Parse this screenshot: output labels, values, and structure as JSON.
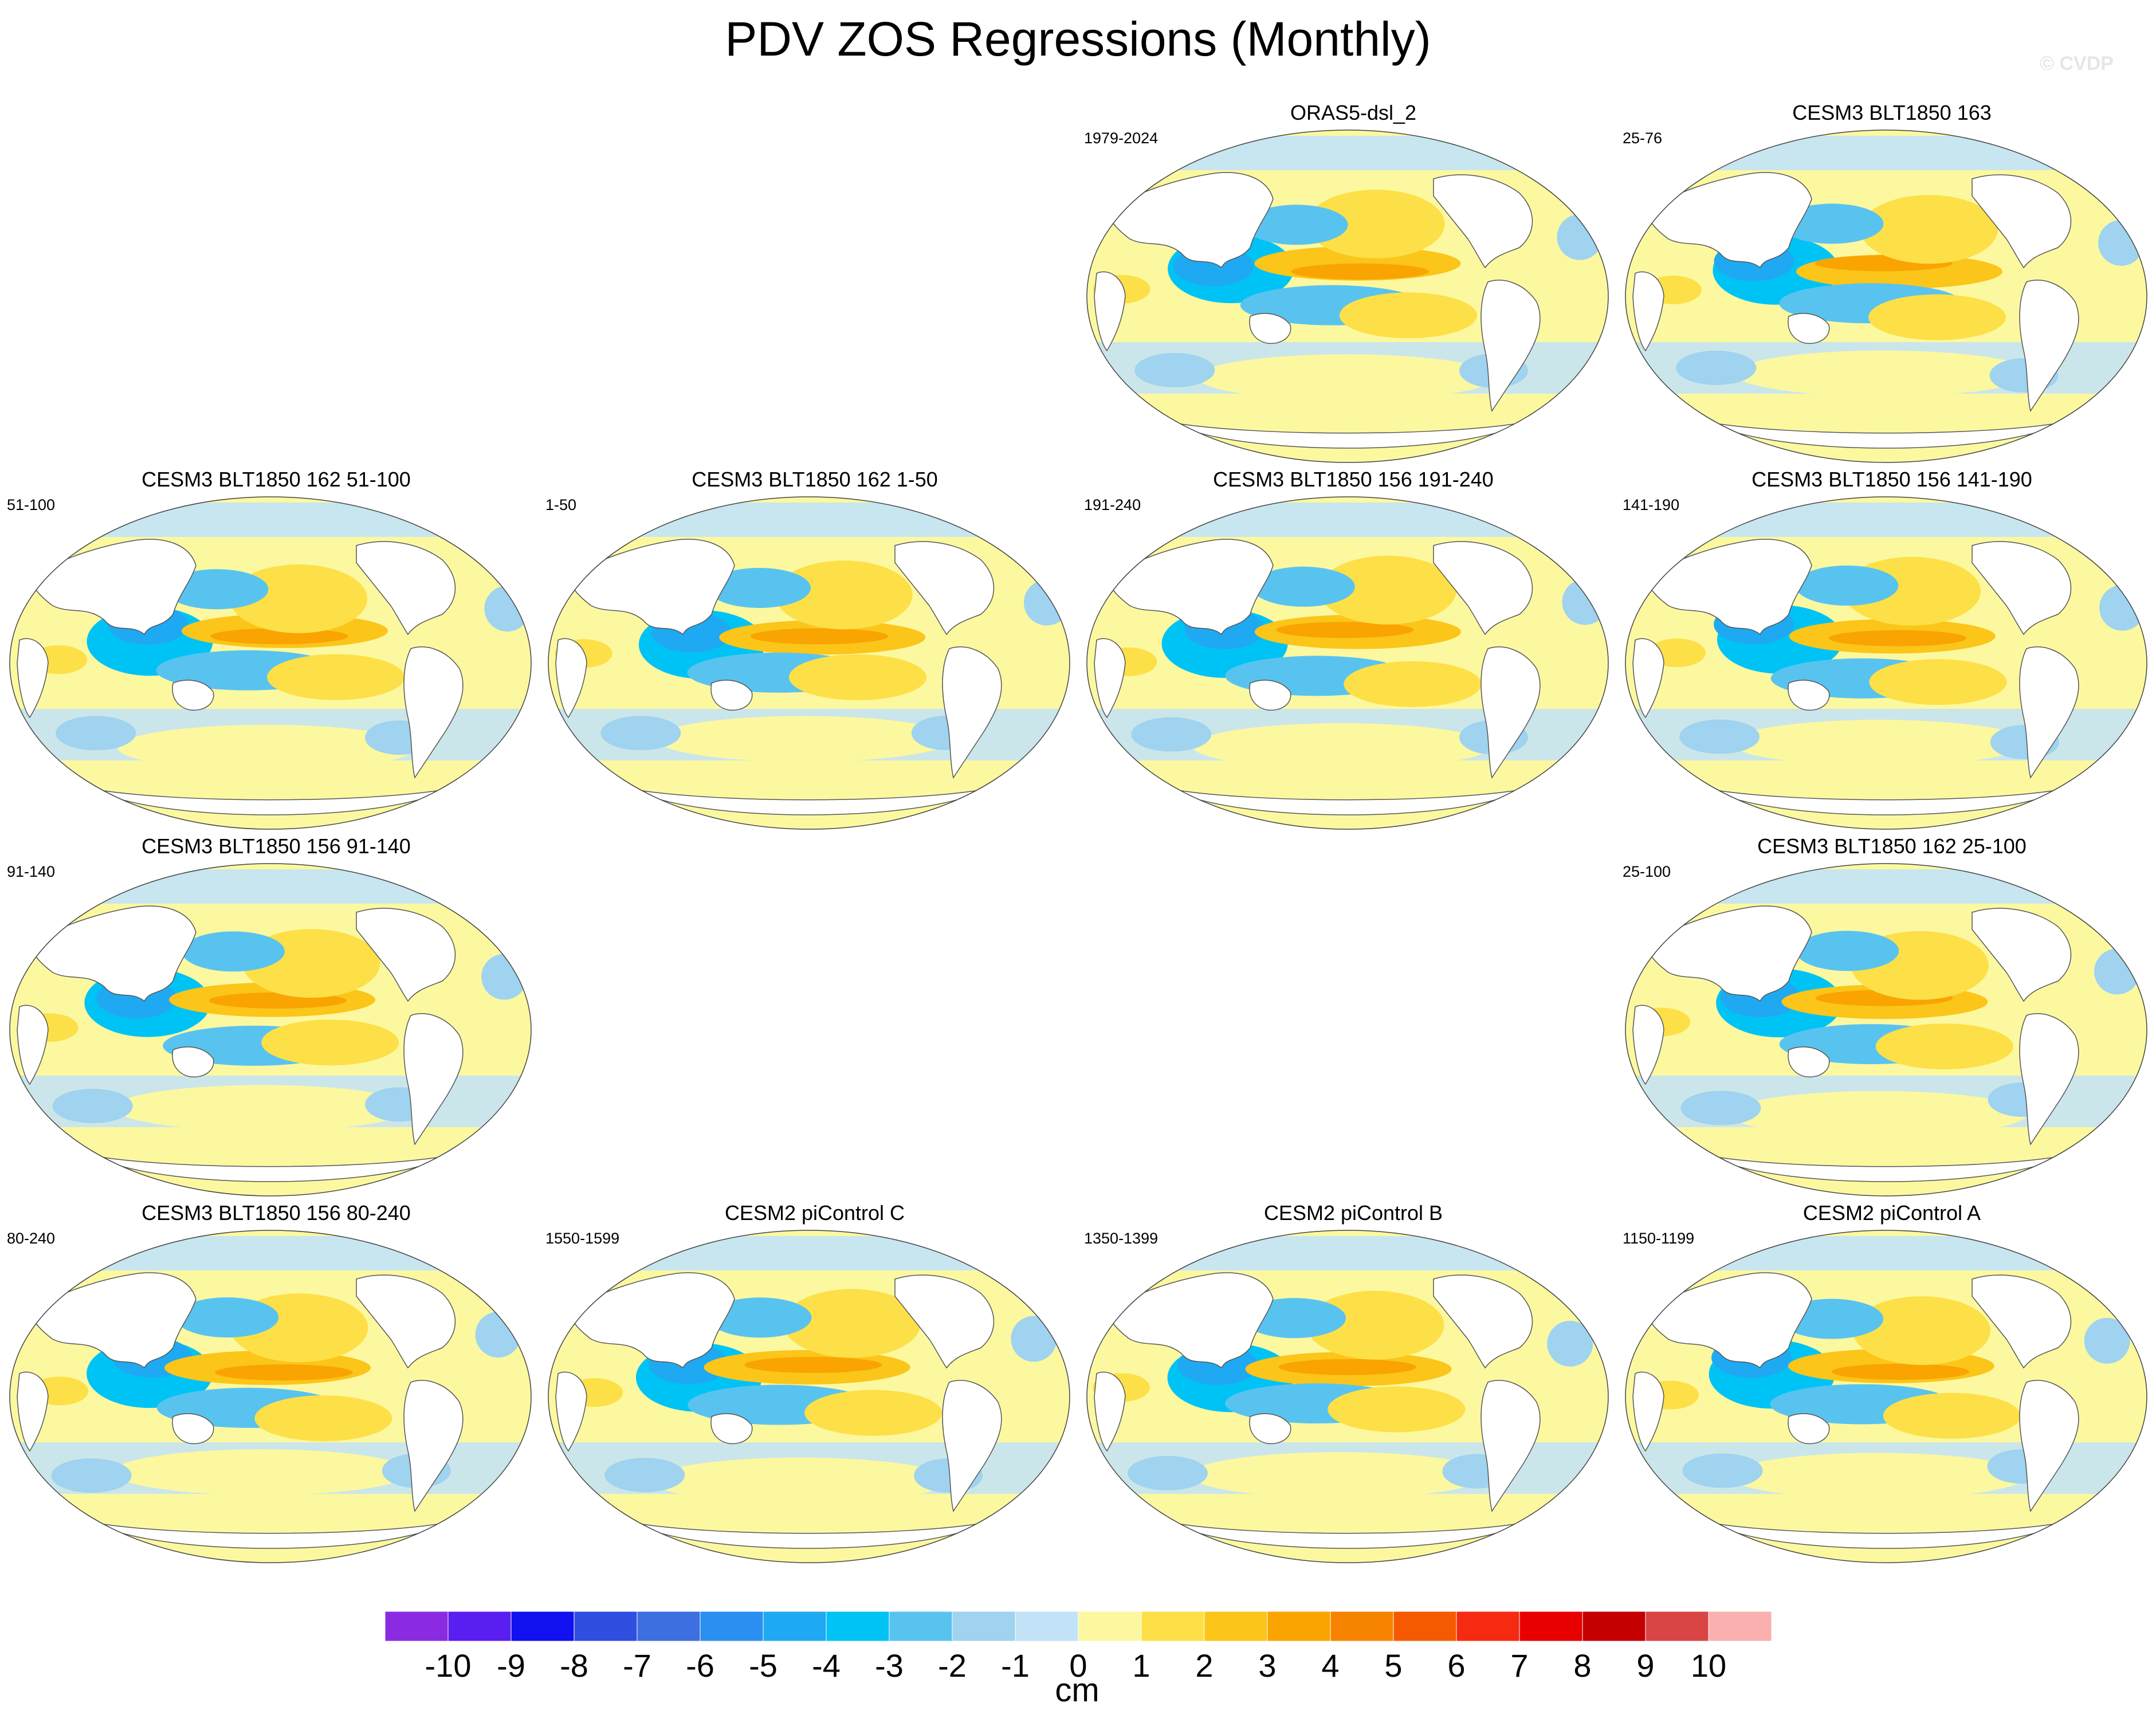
{
  "title": "PDV ZOS Regressions (Monthly)",
  "credit": "© CVDP",
  "panels": [
    {
      "title": "ORAS5-dsl_2",
      "range": "1979-2024",
      "row": 0,
      "col": 2
    },
    {
      "title": "CESM3 BLT1850 163",
      "range": "25-76",
      "row": 0,
      "col": 3
    },
    {
      "title": "CESM3 BLT1850 162 51-100",
      "range": "51-100",
      "row": 1,
      "col": 0
    },
    {
      "title": "CESM3 BLT1850 162 1-50",
      "range": "1-50",
      "row": 1,
      "col": 1
    },
    {
      "title": "CESM3 BLT1850 156 191-240",
      "range": "191-240",
      "row": 1,
      "col": 2
    },
    {
      "title": "CESM3 BLT1850 156 141-190",
      "range": "141-190",
      "row": 1,
      "col": 3
    },
    {
      "title": "CESM3 BLT1850 156 91-140",
      "range": "91-140",
      "row": 2,
      "col": 0
    },
    {
      "title": "CESM3 BLT1850 162 25-100",
      "range": "25-100",
      "row": 2,
      "col": 3
    },
    {
      "title": "CESM3 BLT1850 156 80-240",
      "range": "80-240",
      "row": 3,
      "col": 0
    },
    {
      "title": "CESM2 piControl C",
      "range": "1550-1599",
      "row": 3,
      "col": 1
    },
    {
      "title": "CESM2 piControl B",
      "range": "1350-1399",
      "row": 3,
      "col": 2
    },
    {
      "title": "CESM2 piControl A",
      "range": "1150-1199",
      "row": 3,
      "col": 3
    }
  ],
  "colorbar": {
    "unit": "cm",
    "labels": [
      "-10",
      "-9",
      "-8",
      "-7",
      "-6",
      "-5",
      "-4",
      "-3",
      "-2",
      "-1",
      "0",
      "1",
      "2",
      "3",
      "4",
      "5",
      "6",
      "7",
      "8",
      "9",
      "10"
    ],
    "colors": [
      "#8a2be2",
      "#5a1ef0",
      "#1010f0",
      "#2e4fe0",
      "#3d6fe0",
      "#2a8ff0",
      "#1fa9f2",
      "#00c3f5",
      "#59c3f0",
      "#9fd3ef",
      "#c2e3f7",
      "#fcf8a0",
      "#fde047",
      "#fbc51a",
      "#f9a400",
      "#f78400",
      "#f55a00",
      "#f52a10",
      "#e80000",
      "#c40000",
      "#d94545",
      "#fbb0b0"
    ]
  }
}
